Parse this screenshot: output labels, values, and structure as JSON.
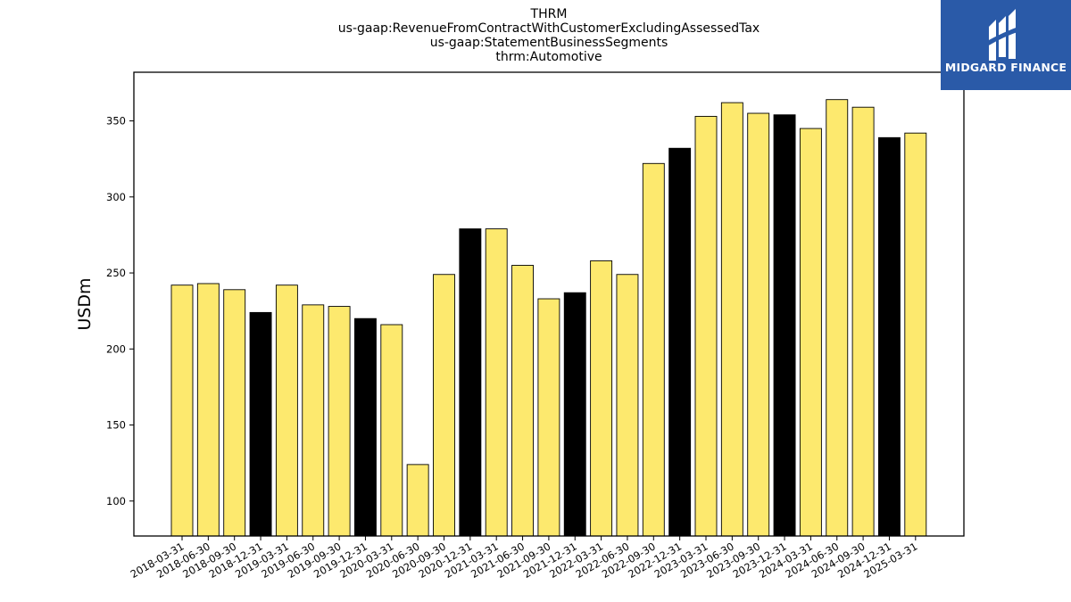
{
  "chart_data": {
    "type": "bar",
    "title": [
      "THRM",
      "us-gaap:RevenueFromContractWithCustomerExcludingAssessedTax",
      "us-gaap:StatementBusinessSegments",
      "thrm:Automotive"
    ],
    "xlabel": "",
    "ylabel": "USDm",
    "ylim": [
      77,
      382
    ],
    "yticks": [
      100,
      150,
      200,
      250,
      300,
      350
    ],
    "grid": false,
    "categories": [
      "2018-03-31",
      "2018-06-30",
      "2018-09-30",
      "2018-12-31",
      "2019-03-31",
      "2019-06-30",
      "2019-09-30",
      "2019-12-31",
      "2020-03-31",
      "2020-06-30",
      "2020-09-30",
      "2020-12-31",
      "2021-03-31",
      "2021-06-30",
      "2021-09-30",
      "2021-12-31",
      "2022-03-31",
      "2022-06-30",
      "2022-09-30",
      "2022-12-31",
      "2023-03-31",
      "2023-06-30",
      "2023-09-30",
      "2023-12-31",
      "2024-03-31",
      "2024-06-30",
      "2024-09-30",
      "2024-12-31",
      "2025-03-31"
    ],
    "values": [
      242,
      243,
      239,
      224,
      242,
      229,
      228,
      220,
      216,
      124,
      249,
      279,
      279,
      255,
      233,
      237,
      258,
      249,
      322,
      332,
      353,
      362,
      355,
      354,
      345,
      364,
      359,
      339,
      342
    ],
    "bar_colors": {
      "quarter": "#fde96e",
      "year_end": "#000000",
      "edge": "#000000"
    }
  },
  "logo": {
    "text": "MIDGARD FINANCE",
    "bg_color": "#2a5aa8"
  }
}
